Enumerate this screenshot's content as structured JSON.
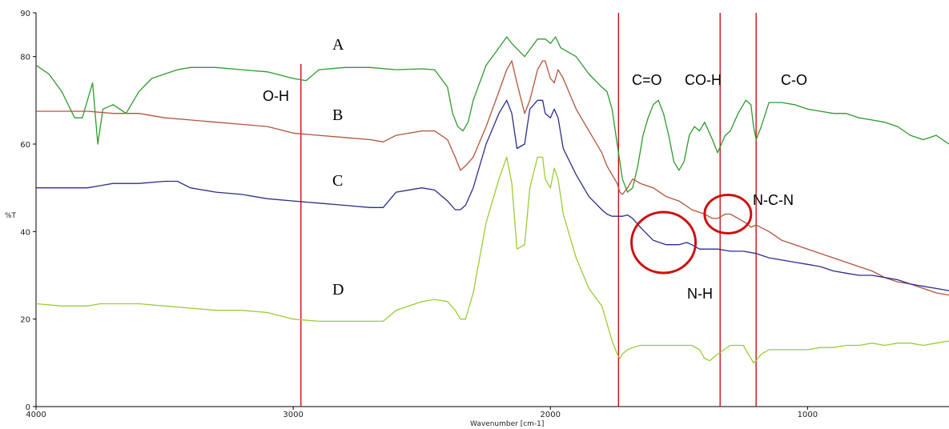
{
  "chart_data": {
    "type": "line",
    "xlabel": "Wavenumber [cm-1]",
    "ylabel": "%T",
    "xlim": [
      4000,
      450
    ],
    "ylim": [
      0,
      90
    ],
    "x_ticks": [
      4000,
      3000,
      2000,
      1000
    ],
    "y_ticks": [
      0,
      20,
      40,
      60,
      80
    ],
    "series_labels": [
      "A",
      "B",
      "C",
      "D"
    ],
    "series": [
      {
        "name": "A",
        "color": "#2e9a2e",
        "x": [
          4000,
          3950,
          3900,
          3850,
          3820,
          3780,
          3760,
          3740,
          3700,
          3650,
          3600,
          3550,
          3500,
          3450,
          3400,
          3300,
          3200,
          3100,
          3000,
          2950,
          2900,
          2800,
          2700,
          2600,
          2500,
          2450,
          2400,
          2380,
          2360,
          2340,
          2320,
          2300,
          2250,
          2200,
          2170,
          2150,
          2100,
          2050,
          2020,
          2000,
          1980,
          1960,
          1900,
          1850,
          1800,
          1780,
          1760,
          1740,
          1720,
          1700,
          1680,
          1660,
          1640,
          1620,
          1600,
          1580,
          1560,
          1540,
          1520,
          1500,
          1480,
          1460,
          1440,
          1420,
          1400,
          1370,
          1350,
          1320,
          1300,
          1270,
          1240,
          1220,
          1210,
          1200,
          1180,
          1150,
          1100,
          1050,
          1000,
          950,
          900,
          850,
          800,
          750,
          700,
          650,
          600,
          550,
          500,
          450
        ],
        "y": [
          78,
          76,
          72,
          66,
          66,
          74,
          60,
          68,
          69,
          67,
          72,
          75,
          76,
          77,
          77.5,
          77.5,
          77,
          76.5,
          75,
          74.5,
          77,
          77.5,
          77.5,
          77,
          77.2,
          77,
          73,
          67,
          64,
          63,
          65,
          70,
          78,
          82,
          84.5,
          83,
          80,
          84,
          84,
          83,
          84.5,
          82,
          80,
          76,
          73,
          72,
          68,
          60,
          52,
          49,
          50,
          55,
          62,
          66,
          69,
          70,
          67,
          62,
          56,
          54,
          56,
          62,
          64,
          63,
          65,
          61,
          58,
          62,
          63,
          67,
          70,
          69,
          64,
          61,
          64,
          69.5,
          69.5,
          69,
          68,
          67.5,
          67,
          67,
          66,
          65.5,
          65,
          64,
          62,
          61,
          62,
          60
        ]
      },
      {
        "name": "B",
        "color": "#b0553a",
        "x": [
          4000,
          3900,
          3800,
          3700,
          3600,
          3500,
          3400,
          3300,
          3200,
          3100,
          3000,
          2900,
          2800,
          2700,
          2650,
          2600,
          2500,
          2450,
          2400,
          2370,
          2350,
          2330,
          2300,
          2250,
          2200,
          2170,
          2150,
          2130,
          2100,
          2080,
          2050,
          2030,
          2020,
          2000,
          1985,
          1970,
          1950,
          1900,
          1850,
          1800,
          1780,
          1760,
          1740,
          1730,
          1720,
          1700,
          1680,
          1650,
          1600,
          1550,
          1500,
          1450,
          1400,
          1370,
          1350,
          1320,
          1300,
          1270,
          1240,
          1220,
          1200,
          1150,
          1100,
          1050,
          1000,
          950,
          900,
          850,
          800,
          750,
          700,
          650,
          600,
          550,
          500,
          450
        ],
        "y": [
          67.5,
          67.5,
          67.5,
          67,
          67,
          66,
          65.5,
          65,
          64.5,
          64,
          62.5,
          62,
          61.5,
          61,
          60.5,
          62,
          63,
          63,
          61,
          57,
          54,
          55,
          57,
          64,
          72,
          77,
          79,
          74,
          67,
          70,
          77,
          79,
          79,
          75,
          74,
          77,
          75,
          68,
          63,
          58,
          55,
          53,
          51,
          49,
          48.5,
          50,
          52,
          51,
          50,
          48,
          47,
          45,
          44,
          43,
          43,
          44,
          44,
          43,
          42,
          41,
          41.5,
          40,
          38,
          37,
          36,
          35,
          34,
          33,
          32,
          31,
          29.5,
          28.5,
          28,
          27,
          26,
          25.5
        ]
      },
      {
        "name": "C",
        "color": "#2c2c8c",
        "x": [
          4000,
          3900,
          3800,
          3700,
          3600,
          3500,
          3450,
          3400,
          3300,
          3200,
          3100,
          3000,
          2900,
          2800,
          2700,
          2650,
          2600,
          2500,
          2450,
          2400,
          2370,
          2350,
          2330,
          2300,
          2250,
          2200,
          2170,
          2150,
          2130,
          2100,
          2080,
          2050,
          2030,
          2020,
          2000,
          1985,
          1970,
          1950,
          1900,
          1850,
          1800,
          1780,
          1760,
          1740,
          1720,
          1700,
          1680,
          1650,
          1600,
          1550,
          1500,
          1470,
          1450,
          1420,
          1400,
          1350,
          1300,
          1250,
          1200,
          1150,
          1100,
          1050,
          1000,
          950,
          900,
          850,
          800,
          750,
          700,
          650,
          600,
          550,
          500,
          450
        ],
        "y": [
          50,
          50,
          50,
          51,
          51,
          51.5,
          51.5,
          50,
          49,
          48.5,
          47.5,
          47,
          46.5,
          46,
          45.5,
          45.5,
          49,
          50,
          49.5,
          47,
          45,
          45,
          46,
          50,
          60,
          67,
          70,
          67,
          59,
          60,
          68,
          70,
          70,
          67,
          66,
          68,
          66,
          59,
          53,
          48,
          45,
          44,
          43.5,
          43.5,
          43.5,
          43.8,
          43,
          41,
          38,
          37,
          37,
          37.5,
          37,
          36,
          36,
          36,
          35.5,
          35.5,
          35,
          34,
          33.5,
          33,
          32.5,
          32,
          31,
          30.5,
          30,
          30,
          29.5,
          29,
          28,
          27.5,
          27,
          26.5
        ]
      },
      {
        "name": "D",
        "color": "#9acd32",
        "x": [
          4000,
          3900,
          3800,
          3750,
          3700,
          3600,
          3500,
          3400,
          3300,
          3200,
          3100,
          3000,
          2900,
          2800,
          2700,
          2650,
          2600,
          2500,
          2450,
          2400,
          2370,
          2350,
          2330,
          2300,
          2250,
          2200,
          2170,
          2150,
          2130,
          2100,
          2080,
          2050,
          2030,
          2020,
          2000,
          1985,
          1970,
          1950,
          1900,
          1850,
          1800,
          1780,
          1760,
          1740,
          1730,
          1720,
          1700,
          1680,
          1650,
          1600,
          1550,
          1500,
          1450,
          1420,
          1400,
          1380,
          1350,
          1300,
          1250,
          1220,
          1210,
          1200,
          1180,
          1150,
          1100,
          1050,
          1000,
          950,
          900,
          850,
          800,
          750,
          700,
          650,
          600,
          550,
          500,
          450
        ],
        "y": [
          23.5,
          23,
          23,
          23.5,
          23.5,
          23.5,
          23,
          22.5,
          22,
          22,
          21.5,
          20,
          19.5,
          19.5,
          19.5,
          19.5,
          22,
          24,
          24.5,
          24,
          22,
          20,
          20,
          26,
          42,
          52,
          57,
          51,
          36,
          37,
          50,
          57,
          57,
          52,
          50,
          54.5,
          52,
          44,
          34,
          27,
          23,
          19,
          15,
          12,
          11,
          12,
          13,
          13.5,
          14,
          14,
          14,
          14,
          14,
          13,
          11,
          10.5,
          12,
          14,
          14,
          11,
          10,
          10.5,
          12,
          13,
          13,
          13,
          13,
          13.5,
          13.5,
          14,
          14,
          14.5,
          14,
          14.5,
          14.5,
          14,
          14.5,
          15
        ]
      }
    ],
    "vertical_markers": [
      2970,
      1735,
      1340,
      1200
    ],
    "band_labels": {
      "oh": "O-H",
      "co_double": "C=O",
      "coh": "CO-H",
      "co_single": "C-O",
      "ncn": "N-C-N",
      "nh": "N-H"
    },
    "highlight_circles": [
      {
        "label": "N-H",
        "center_x": 1560,
        "center_y": 37.5
      },
      {
        "label": "N-C-N",
        "center_x": 1310,
        "center_y": 44
      }
    ],
    "marker_color": "#cc1111",
    "grid": false,
    "legend": "none"
  }
}
